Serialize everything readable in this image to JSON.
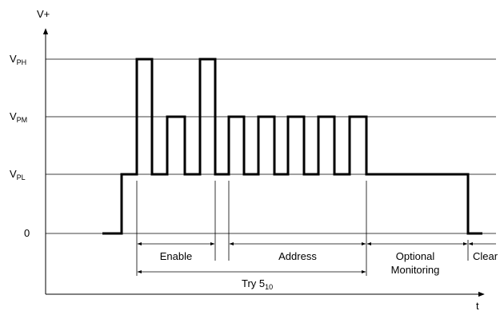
{
  "axes": {
    "y_label": "V+",
    "x_label": "t"
  },
  "levels": [
    {
      "id": "vph",
      "main": "V",
      "sub": "PH"
    },
    {
      "id": "vpm",
      "main": "V",
      "sub": "PM"
    },
    {
      "id": "vpl",
      "main": "V",
      "sub": "PL"
    },
    {
      "id": "zero",
      "main": "0",
      "sub": ""
    }
  ],
  "intervals": {
    "enable": "Enable",
    "address": "Address",
    "optional_line1": "Optional",
    "optional_line2": "Monitoring",
    "clear": "Clear",
    "try_main": "Try 5",
    "try_sub": "10"
  }
}
